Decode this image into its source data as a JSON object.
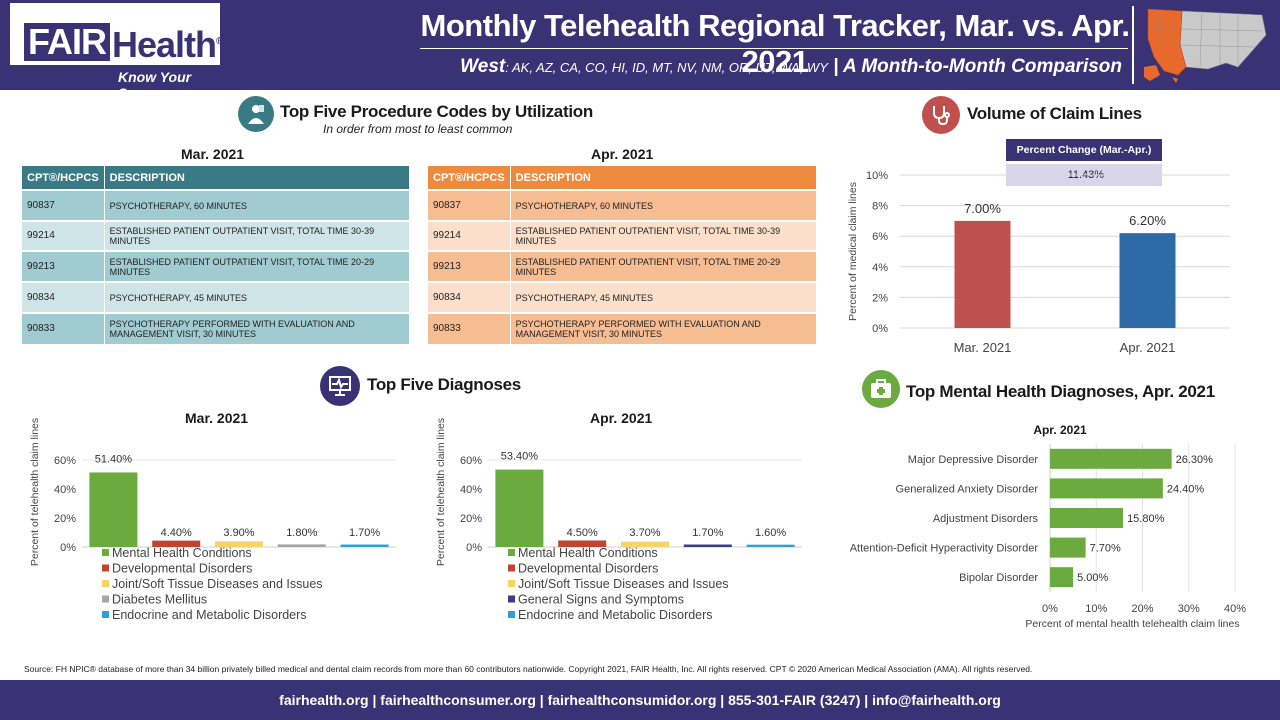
{
  "header": {
    "logo_fair": "FAIR",
    "logo_health": "Health",
    "logo_reg": "®",
    "logo_tagline": "Know Your Source",
    "title": "Monthly Telehealth Regional Tracker, Mar. vs. Apr. 2021",
    "region": "West",
    "states": ": AK, AZ, CA, CO, HI, ID, MT, NV, NM, OR, UT, WA, WY",
    "comparison": "| A Month-to-Month Comparison",
    "brand_color": "#3b3276",
    "map_highlight_color": "#e8692c"
  },
  "procedures": {
    "title": "Top Five Procedure Codes by Utilization",
    "subtitle": "In order from most to least common",
    "col_code": "CPT®/HCPCS",
    "col_desc": "DESCRIPTION",
    "mar": {
      "label": "Mar. 2021",
      "rows": [
        {
          "code": "90837",
          "desc": "PSYCHOTHERAPY, 60 MINUTES"
        },
        {
          "code": "99214",
          "desc": "ESTABLISHED PATIENT OUTPATIENT VISIT, TOTAL TIME 30-39 MINUTES"
        },
        {
          "code": "99213",
          "desc": "ESTABLISHED PATIENT OUTPATIENT VISIT, TOTAL TIME 20-29 MINUTES"
        },
        {
          "code": "90834",
          "desc": "PSYCHOTHERAPY, 45 MINUTES"
        },
        {
          "code": "90833",
          "desc": "PSYCHOTHERAPY PERFORMED WITH EVALUATION AND MANAGEMENT VISIT, 30 MINUTES"
        }
      ]
    },
    "apr": {
      "label": "Apr. 2021",
      "rows": [
        {
          "code": "90837",
          "desc": "PSYCHOTHERAPY, 60 MINUTES"
        },
        {
          "code": "99214",
          "desc": "ESTABLISHED PATIENT OUTPATIENT VISIT, TOTAL TIME 30-39 MINUTES"
        },
        {
          "code": "99213",
          "desc": "ESTABLISHED PATIENT OUTPATIENT VISIT, TOTAL TIME 20-29 MINUTES"
        },
        {
          "code": "90834",
          "desc": "PSYCHOTHERAPY, 45 MINUTES"
        },
        {
          "code": "90833",
          "desc": "PSYCHOTHERAPY PERFORMED WITH EVALUATION AND MANAGEMENT VISIT, 30 MINUTES"
        }
      ]
    }
  },
  "volume": {
    "title": "Volume of Claim Lines",
    "pct_change_header": "Percent Change (Mar.-Apr.)",
    "pct_change_value": "-11.43%"
  },
  "diagnoses": {
    "title": "Top Five Diagnoses",
    "mar_label": "Mar. 2021",
    "apr_label": "Apr. 2021"
  },
  "mental": {
    "title": "Top Mental Health Diagnoses, Apr. 2021"
  },
  "chart_data": [
    {
      "id": "volume",
      "type": "bar",
      "categories": [
        "Mar. 2021",
        "Apr. 2021"
      ],
      "values": [
        7.0,
        6.2
      ],
      "value_labels": [
        "7.00%",
        "6.20%"
      ],
      "colors": [
        "#c0504d",
        "#2e6aa7"
      ],
      "ylabel": "Percent of medical claim lines",
      "ylim": [
        0,
        10
      ],
      "yticks": [
        "0%",
        "2%",
        "4%",
        "6%",
        "8%",
        "10%"
      ],
      "grid": true
    },
    {
      "id": "diag-mar",
      "type": "bar",
      "title": "Mar. 2021",
      "categories": [
        "Mental Health Conditions",
        "Developmental Disorders",
        "Joint/Soft Tissue Diseases and Issues",
        "Diabetes Mellitus",
        "Endocrine and Metabolic Disorders"
      ],
      "values": [
        51.4,
        4.4,
        3.9,
        1.8,
        1.7
      ],
      "value_labels": [
        "51.40%",
        "4.40%",
        "3.90%",
        "1.80%",
        "1.70%"
      ],
      "colors": [
        "#6aaa3f",
        "#c0442f",
        "#f5d46a",
        "#a6a6a6",
        "#2e9fd8"
      ],
      "ylabel": "Percent of telehealth claim lines",
      "ylim": [
        0,
        60
      ],
      "yticks": [
        "0%",
        "20%",
        "40%",
        "60%"
      ],
      "legend": "bottom"
    },
    {
      "id": "diag-apr",
      "type": "bar",
      "title": "Apr. 2021",
      "categories": [
        "Mental Health Conditions",
        "Developmental Disorders",
        "Joint/Soft Tissue Diseases and Issues",
        "General Signs and Symptoms",
        "Endocrine and Metabolic Disorders"
      ],
      "values": [
        53.4,
        4.5,
        3.7,
        1.7,
        1.6
      ],
      "value_labels": [
        "53.40%",
        "4.50%",
        "3.70%",
        "1.70%",
        "1.60%"
      ],
      "colors": [
        "#6aaa3f",
        "#c0442f",
        "#f5d46a",
        "#3b3a8a",
        "#2e9fd8"
      ],
      "ylabel": "Percent of telehealth claim lines",
      "ylim": [
        0,
        60
      ],
      "yticks": [
        "0%",
        "20%",
        "40%",
        "60%"
      ],
      "legend": "bottom"
    },
    {
      "id": "mental",
      "type": "bar",
      "orientation": "horizontal",
      "title": "Apr. 2021",
      "categories": [
        "Major Depressive Disorder",
        "Generalized Anxiety Disorder",
        "Adjustment Disorders",
        "Attention-Deficit Hyperactivity Disorder",
        "Bipolar Disorder"
      ],
      "values": [
        26.3,
        24.4,
        15.8,
        7.7,
        5.0
      ],
      "value_labels": [
        "26.30%",
        "24.40%",
        "15.80%",
        "7.70%",
        "5.00%"
      ],
      "color": "#6aaa3f",
      "xlabel": "Percent of mental health telehealth claim lines",
      "xlim": [
        0,
        40
      ],
      "xticks": [
        "0%",
        "10%",
        "20%",
        "30%",
        "40%"
      ]
    }
  ],
  "source": "Source: FH NPIC® database of more than 34 billion privately billed medical and dental claim records from more than 60 contributors nationwide. Copyright 2021, FAIR Health, Inc. All rights reserved. CPT © 2020 American Medical Association (AMA). All rights reserved.",
  "footer": "fairhealth.org  |  fairhealthconsumer.org  |  fairhealthconsumidor.org  |  855-301-FAIR (3247)  |  info@fairhealth.org"
}
